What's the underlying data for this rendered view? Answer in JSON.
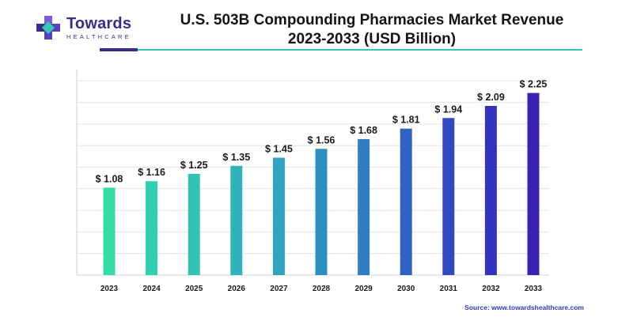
{
  "header": {
    "logo_name": "Towards",
    "logo_sub": "HEALTHCARE",
    "title_line1": "U.S. 503B Compounding Pharmacies Market Revenue",
    "title_line2": "2023-2033 (USD Billion)"
  },
  "chart_data": {
    "type": "bar",
    "categories": [
      "2023",
      "2024",
      "2025",
      "2026",
      "2027",
      "2028",
      "2029",
      "2030",
      "2031",
      "2032",
      "2033"
    ],
    "values": [
      1.08,
      1.16,
      1.25,
      1.35,
      1.45,
      1.56,
      1.68,
      1.81,
      1.94,
      2.09,
      2.25
    ],
    "labels": [
      "$ 1.08",
      "$ 1.16",
      "$ 1.25",
      "$ 1.35",
      "$ 1.45",
      "$ 1.56",
      "$ 1.68",
      "$ 1.81",
      "$ 1.94",
      "$ 2.09",
      "$ 2.25"
    ],
    "colors": [
      "#35dca6",
      "#30d0ac",
      "#2fc4b4",
      "#2fb3bb",
      "#2fa3bf",
      "#2e8fbf",
      "#2f7ec2",
      "#2f62c4",
      "#2f4ac2",
      "#3133bd",
      "#3b22b4"
    ],
    "title": "U.S. 503B Compounding Pharmacies Market Revenue 2023-2033 (USD Billion)",
    "xlabel": "",
    "ylabel": "",
    "ylim": [
      0,
      2.5
    ],
    "grid": true
  },
  "footer": {
    "source": "Source: www.towardshealthcare.com"
  }
}
